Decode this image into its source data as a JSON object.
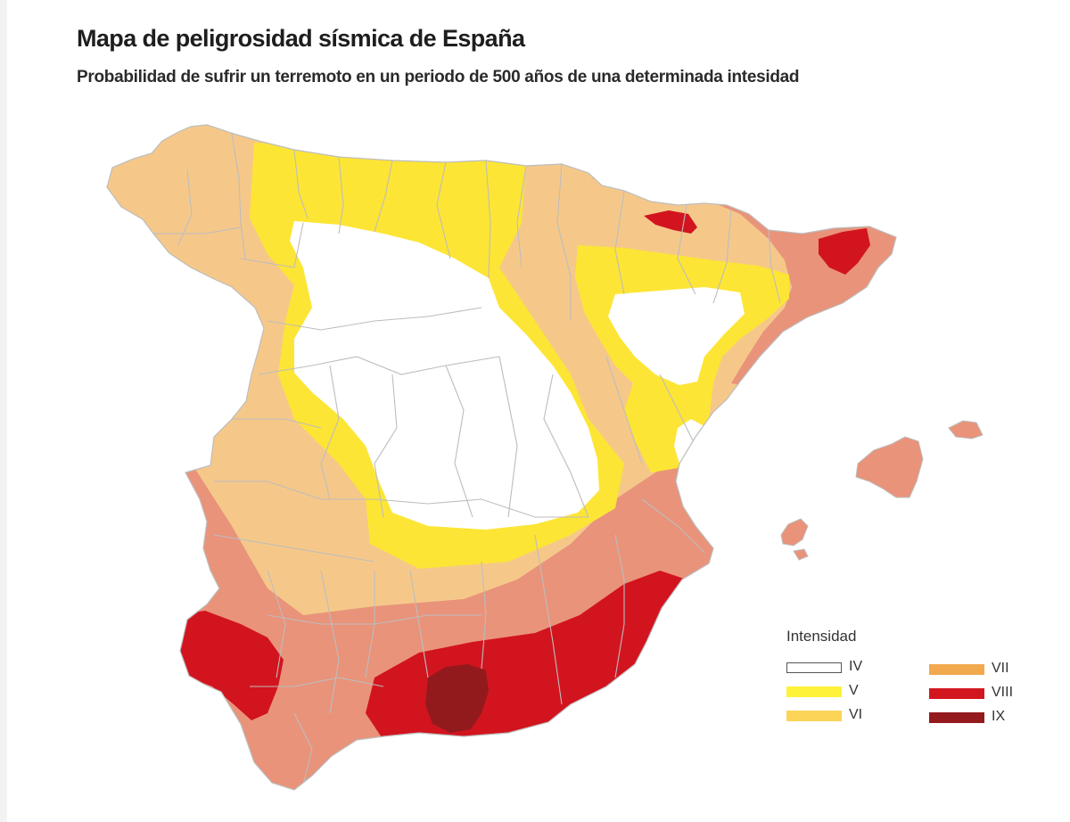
{
  "header": {
    "title": "Mapa de peligrosidad sísmica de España",
    "subtitle": "Probabilidad de sufrir un terremoto en un periodo de 500 años de una determinada intesidad"
  },
  "legend": {
    "title": "Intensidad",
    "items": [
      {
        "label": "IV",
        "color": "#ffffff",
        "border": "#555555"
      },
      {
        "label": "V",
        "color": "#fff23a"
      },
      {
        "label": "VI",
        "color": "#fbd458"
      },
      {
        "label": "VII",
        "color": "#f2a94e"
      },
      {
        "label": "VIII",
        "color": "#d2161f"
      },
      {
        "label": "IX",
        "color": "#951a1d"
      }
    ]
  },
  "map_colors": {
    "iv": "#ffffff",
    "v": "#fde535",
    "vi": "#f5c88a",
    "vii": "#e9937a",
    "viii": "#d2141f",
    "ix": "#931a1c",
    "borders": "#bdbdbd"
  }
}
